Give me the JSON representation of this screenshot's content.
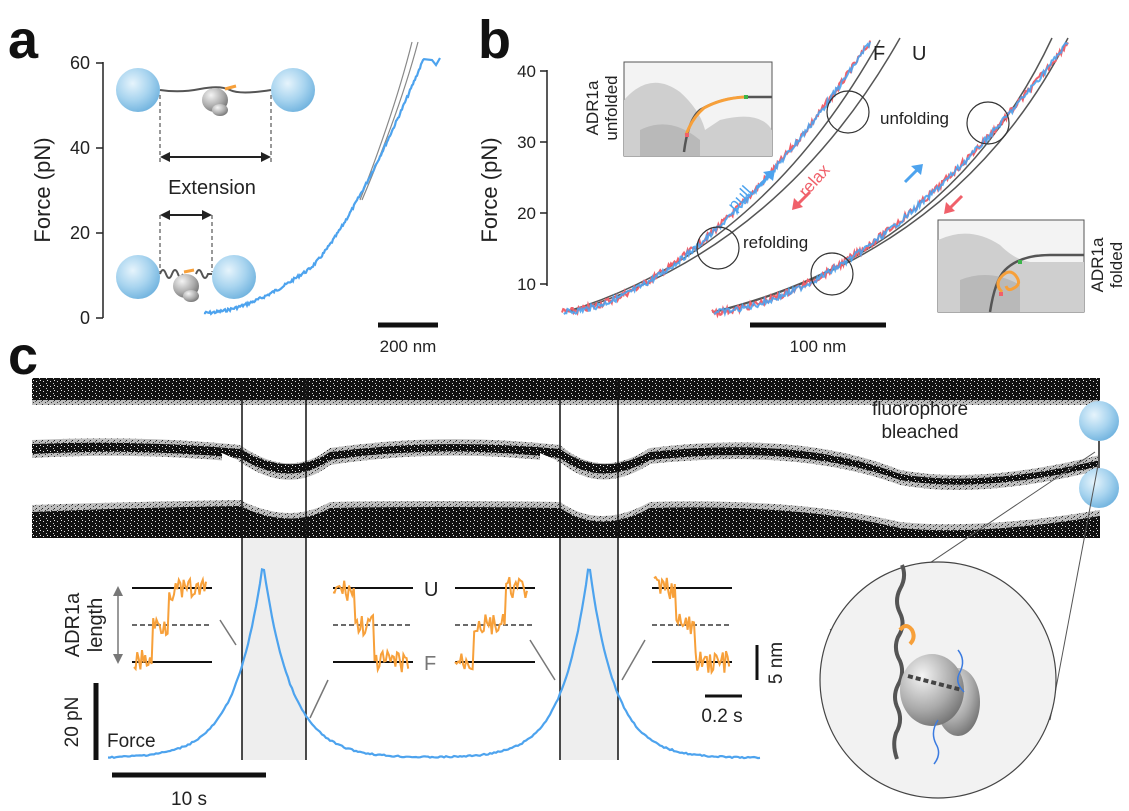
{
  "colors": {
    "blue": "#4da3ee",
    "red": "#f0606a",
    "orange": "#f7a03a",
    "grey": "#555555",
    "bead": "#9fd0ee",
    "green": "#3cb44b"
  },
  "panel_a": {
    "letter": "a",
    "ylabel": "Force (pN)",
    "yticks": [
      "0",
      "20",
      "40",
      "60"
    ],
    "extension_label": "Extension",
    "scalebar_label": "200 nm"
  },
  "panel_b": {
    "letter": "b",
    "ylabel": "Force (pN)",
    "yticks": [
      "10",
      "20",
      "30",
      "40"
    ],
    "curve_F": "F",
    "curve_U": "U",
    "pull": "pull",
    "relax": "relax",
    "unfolding": "unfolding",
    "refolding": "refolding",
    "inset_unfolded": [
      "ADR1a",
      "unfolded"
    ],
    "inset_folded": [
      "ADR1a",
      "folded"
    ],
    "scalebar_label": "100 nm"
  },
  "panel_c": {
    "letter": "c",
    "fluoro_label": [
      "fluorophore",
      "bleached"
    ],
    "length_label": [
      "ADR1a",
      "length"
    ],
    "state_U": "U",
    "state_F": "F",
    "nm_scale": "5 nm",
    "time_scale_small": "0.2 s",
    "force_scale": "20 pN",
    "force_label": "Force",
    "time_scale": "10 s"
  }
}
